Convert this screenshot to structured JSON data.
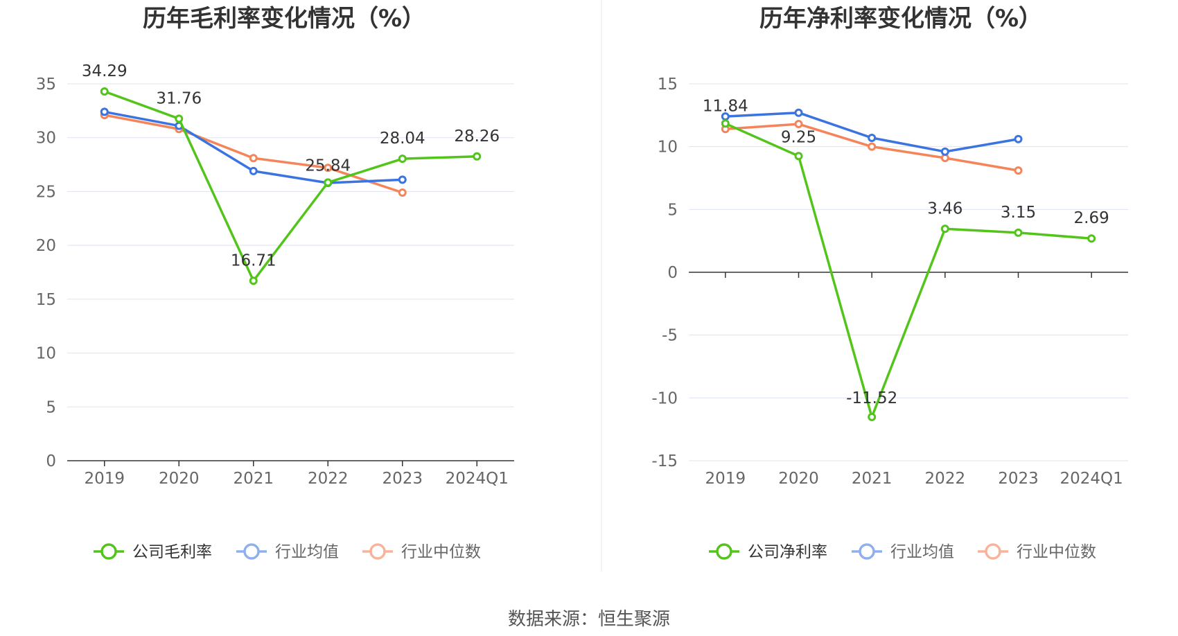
{
  "source_label": "数据来源：恒生聚源",
  "chart_data": [
    {
      "type": "line",
      "title": "历年毛利率变化情况（%）",
      "categories": [
        "2019",
        "2020",
        "2021",
        "2022",
        "2023",
        "2024Q1"
      ],
      "ylim": [
        0,
        35
      ],
      "yticks": [
        0,
        5,
        10,
        15,
        20,
        25,
        30,
        35
      ],
      "grid": true,
      "legend_position": "bottom",
      "series": [
        {
          "name": "公司毛利率",
          "color": "#52c41a",
          "values": [
            34.29,
            31.76,
            16.71,
            25.84,
            28.04,
            28.26
          ],
          "labels": [
            "34.29",
            "31.76",
            "16.71",
            "25.84",
            "28.04",
            "28.26"
          ]
        },
        {
          "name": "行业均值",
          "color": "#3b73e0",
          "values": [
            32.4,
            31.1,
            26.9,
            25.8,
            26.1,
            null
          ]
        },
        {
          "name": "行业中位数",
          "color": "#f5845a",
          "values": [
            32.1,
            30.8,
            28.1,
            27.2,
            24.9,
            null
          ]
        }
      ]
    },
    {
      "type": "line",
      "title": "历年净利率变化情况（%）",
      "categories": [
        "2019",
        "2020",
        "2021",
        "2022",
        "2023",
        "2024Q1"
      ],
      "ylim": [
        -15,
        15
      ],
      "yticks": [
        -15,
        -10,
        -5,
        0,
        5,
        10,
        15
      ],
      "grid": true,
      "legend_position": "bottom",
      "series": [
        {
          "name": "公司净利率",
          "color": "#52c41a",
          "values": [
            11.84,
            9.25,
            -11.52,
            3.46,
            3.15,
            2.69
          ],
          "labels": [
            "11.84",
            "9.25",
            "-11.52",
            "3.46",
            "3.15",
            "2.69"
          ]
        },
        {
          "name": "行业均值",
          "color": "#3b73e0",
          "values": [
            12.4,
            12.7,
            10.7,
            9.6,
            10.6,
            null
          ]
        },
        {
          "name": "行业中位数",
          "color": "#f5845a",
          "values": [
            11.4,
            11.8,
            10.0,
            9.1,
            8.1,
            null
          ]
        }
      ]
    }
  ]
}
